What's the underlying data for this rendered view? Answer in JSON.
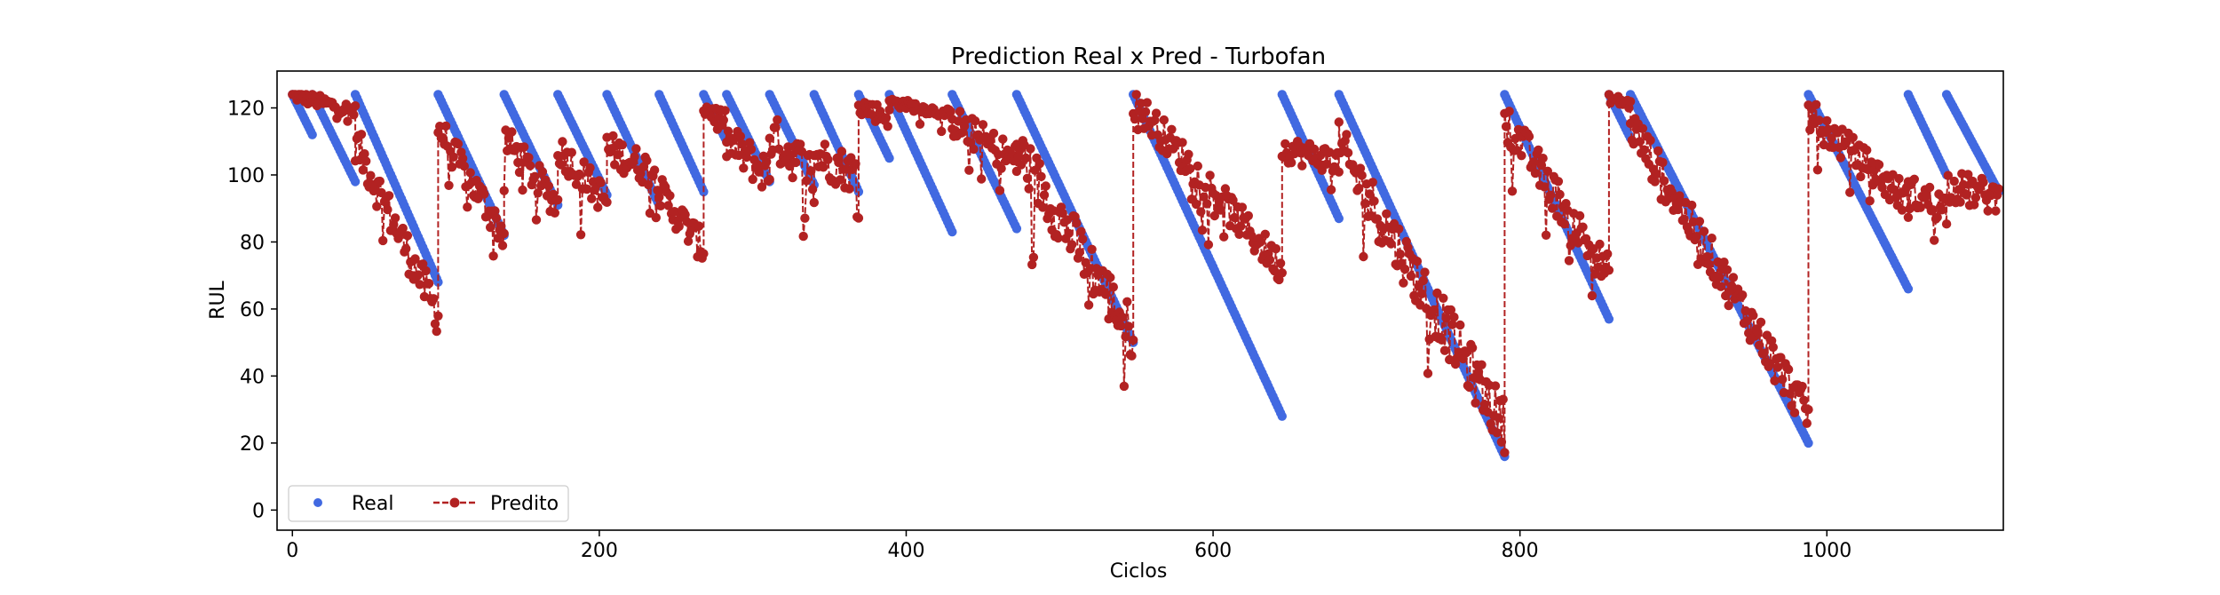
{
  "chart_data": {
    "type": "scatter",
    "title": "Prediction Real x Pred - Turbofan",
    "xlabel": "Ciclos",
    "ylabel": "RUL",
    "xlim": [
      -10,
      1115
    ],
    "ylim": [
      -6,
      131
    ],
    "xticks": [
      0,
      200,
      400,
      600,
      800,
      1000
    ],
    "yticks": [
      0,
      20,
      40,
      60,
      80,
      100,
      120
    ],
    "grid": false,
    "legend": {
      "placement": "lower-left",
      "ncol": 2,
      "entries": [
        "Real",
        "Predito"
      ]
    },
    "colors": {
      "real": "#4169e1",
      "pred": "#b22222"
    },
    "real_segments": [
      {
        "x0": 0,
        "x1": 13,
        "y0": 124,
        "y1": 112
      },
      {
        "x0": 13,
        "x1": 41,
        "y0": 124,
        "y1": 98
      },
      {
        "x0": 41,
        "x1": 95,
        "y0": 124,
        "y1": 68
      },
      {
        "x0": 95,
        "x1": 138,
        "y0": 124,
        "y1": 82
      },
      {
        "x0": 138,
        "x1": 173,
        "y0": 124,
        "y1": 91
      },
      {
        "x0": 173,
        "x1": 205,
        "y0": 124,
        "y1": 94
      },
      {
        "x0": 205,
        "x1": 239,
        "y0": 124,
        "y1": 91
      },
      {
        "x0": 239,
        "x1": 268,
        "y0": 124,
        "y1": 95
      },
      {
        "x0": 268,
        "x1": 283,
        "y0": 124,
        "y1": 110
      },
      {
        "x0": 283,
        "x1": 311,
        "y0": 124,
        "y1": 98
      },
      {
        "x0": 311,
        "x1": 340,
        "y0": 124,
        "y1": 97
      },
      {
        "x0": 340,
        "x1": 369,
        "y0": 124,
        "y1": 95
      },
      {
        "x0": 369,
        "x1": 389,
        "y0": 124,
        "y1": 105
      },
      {
        "x0": 389,
        "x1": 430,
        "y0": 124,
        "y1": 83
      },
      {
        "x0": 430,
        "x1": 472,
        "y0": 124,
        "y1": 84
      },
      {
        "x0": 472,
        "x1": 548,
        "y0": 124,
        "y1": 50
      },
      {
        "x0": 548,
        "x1": 645,
        "y0": 124,
        "y1": 28
      },
      {
        "x0": 645,
        "x1": 682,
        "y0": 124,
        "y1": 87
      },
      {
        "x0": 682,
        "x1": 790,
        "y0": 124,
        "y1": 16
      },
      {
        "x0": 790,
        "x1": 858,
        "y0": 124,
        "y1": 57
      },
      {
        "x0": 858,
        "x1": 872,
        "y0": 124,
        "y1": 111
      },
      {
        "x0": 872,
        "x1": 988,
        "y0": 124,
        "y1": 20
      },
      {
        "x0": 988,
        "x1": 1053,
        "y0": 124,
        "y1": 66
      },
      {
        "x0": 1053,
        "x1": 1078,
        "y0": 124,
        "y1": 100
      },
      {
        "x0": 1078,
        "x1": 1112,
        "y0": 124,
        "y1": 95
      }
    ],
    "pred_segments": [
      {
        "x0": 0,
        "x1": 41,
        "y0": 124,
        "y1": 119,
        "noise": 2
      },
      {
        "x0": 41,
        "x1": 95,
        "y0": 110,
        "y1": 58,
        "noise": 6
      },
      {
        "x0": 95,
        "x1": 138,
        "y0": 114,
        "y1": 82,
        "noise": 5
      },
      {
        "x0": 138,
        "x1": 173,
        "y0": 111,
        "y1": 91,
        "noise": 5
      },
      {
        "x0": 173,
        "x1": 205,
        "y0": 108,
        "y1": 92,
        "noise": 5
      },
      {
        "x0": 205,
        "x1": 239,
        "y0": 108,
        "y1": 100,
        "noise": 5
      },
      {
        "x0": 239,
        "x1": 268,
        "y0": 95,
        "y1": 78,
        "noise": 5
      },
      {
        "x0": 268,
        "x1": 283,
        "y0": 120,
        "y1": 116,
        "noise": 3
      },
      {
        "x0": 283,
        "x1": 311,
        "y0": 110,
        "y1": 100,
        "noise": 6
      },
      {
        "x0": 311,
        "x1": 340,
        "y0": 112,
        "y1": 100,
        "noise": 7
      },
      {
        "x0": 340,
        "x1": 369,
        "y0": 106,
        "y1": 100,
        "noise": 6
      },
      {
        "x0": 369,
        "x1": 389,
        "y0": 121,
        "y1": 117,
        "noise": 3
      },
      {
        "x0": 389,
        "x1": 430,
        "y0": 122,
        "y1": 118,
        "noise": 1.5
      },
      {
        "x0": 430,
        "x1": 472,
        "y0": 116,
        "y1": 104,
        "noise": 5
      },
      {
        "x0": 472,
        "x1": 548,
        "y0": 108,
        "y1": 52,
        "noise": 8
      },
      {
        "x0": 548,
        "x1": 645,
        "y0": 122,
        "y1": 72,
        "noise": 5
      },
      {
        "x0": 645,
        "x1": 682,
        "y0": 108,
        "y1": 104,
        "noise": 4
      },
      {
        "x0": 682,
        "x1": 790,
        "y0": 108,
        "y1": 25,
        "noise": 8
      },
      {
        "x0": 790,
        "x1": 858,
        "y0": 117,
        "y1": 70,
        "noise": 6
      },
      {
        "x0": 858,
        "x1": 872,
        "y0": 123,
        "y1": 121,
        "noise": 1.5
      },
      {
        "x0": 872,
        "x1": 988,
        "y0": 115,
        "y1": 28,
        "noise": 6
      },
      {
        "x0": 988,
        "x1": 1053,
        "y0": 118,
        "y1": 92,
        "noise": 5
      },
      {
        "x0": 1053,
        "x1": 1078,
        "y0": 95,
        "y1": 90,
        "noise": 5
      },
      {
        "x0": 1078,
        "x1": 1112,
        "y0": 97,
        "y1": 93,
        "noise": 5
      }
    ]
  }
}
